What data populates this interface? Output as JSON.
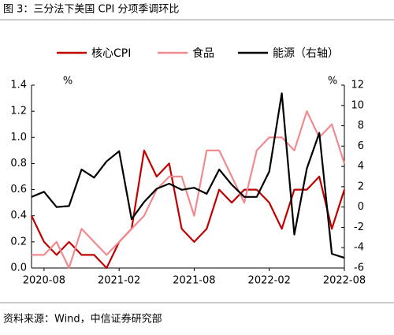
{
  "chart_data": {
    "type": "line",
    "title": "图 3：三分法下美国 CPI 分项季调环比",
    "source": "资料来源：Wind，中信证券研究部",
    "y_unit": "%",
    "y2_unit": "%",
    "categories": [
      null,
      "2020-08",
      null,
      null,
      null,
      null,
      null,
      "2021-02",
      null,
      null,
      null,
      null,
      null,
      "2021-08",
      null,
      null,
      null,
      null,
      null,
      "2022-02",
      null,
      null,
      null,
      null,
      null,
      "2022-08"
    ],
    "series": [
      {
        "name": "核心CPI",
        "color": "#c00000",
        "values": [
          0.4,
          0.2,
          0.1,
          0.2,
          0.1,
          0.1,
          0.0,
          0.2,
          0.3,
          0.9,
          0.7,
          0.8,
          0.3,
          0.2,
          0.3,
          0.6,
          0.5,
          0.6,
          0.6,
          0.5,
          0.3,
          0.6,
          0.6,
          0.7,
          0.3,
          0.6
        ]
      },
      {
        "name": "食品",
        "color": "#f08a8f",
        "values": [
          0.1,
          0.1,
          0.2,
          0.0,
          0.3,
          0.2,
          0.1,
          0.2,
          0.3,
          0.4,
          0.6,
          0.7,
          0.7,
          0.4,
          0.9,
          0.9,
          0.7,
          0.5,
          0.9,
          1.0,
          1.0,
          0.9,
          1.2,
          1.0,
          1.1,
          0.8
        ]
      },
      {
        "name": "能源（右轴）",
        "color": "#000000",
        "axis": "y2",
        "values": [
          1.0,
          1.5,
          0.0,
          0.1,
          3.7,
          2.9,
          4.5,
          5.5,
          -1.2,
          0.5,
          1.8,
          2.3,
          1.7,
          1.9,
          1.3,
          3.7,
          2.2,
          1.0,
          1.0,
          3.5,
          11.2,
          -2.7,
          3.8,
          7.3,
          -4.6,
          -5.0
        ]
      }
    ],
    "ylim": [
      0,
      1.4
    ],
    "yticks": [
      {
        "value": 0,
        "label": "0.0"
      },
      {
        "value": 0.2,
        "label": "0.2"
      },
      {
        "value": 0.4,
        "label": "0.4"
      },
      {
        "value": 0.6,
        "label": "0.6"
      },
      {
        "value": 0.8,
        "label": "0.8"
      },
      {
        "value": 1,
        "label": "1.0"
      },
      {
        "value": 1.2,
        "label": "1.2"
      },
      {
        "value": 1.4,
        "label": "1.4"
      }
    ],
    "y2lim": [
      -6,
      12
    ],
    "y2ticks": [
      -6,
      -4,
      -2,
      0,
      2,
      4,
      6,
      8,
      10,
      12
    ],
    "legend": "top"
  }
}
